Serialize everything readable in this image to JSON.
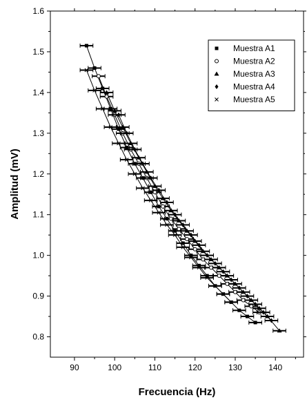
{
  "chart_data": {
    "type": "scatter",
    "title": "",
    "xlabel": "Frecuencia (Hz)",
    "ylabel": "Amplitud (mV)",
    "xlim": [
      84,
      147
    ],
    "ylim": [
      0.75,
      1.6
    ],
    "xticks": [
      90,
      100,
      110,
      120,
      130,
      140
    ],
    "yticks": [
      0.8,
      0.9,
      1.0,
      1.1,
      1.2,
      1.3,
      1.4,
      1.5,
      1.6
    ],
    "xtick_labels": [
      "90",
      "100",
      "110",
      "120",
      "130",
      "140"
    ],
    "ytick_labels": [
      "0.8",
      "0.9",
      "1.0",
      "1.1",
      "1.2",
      "1.3",
      "1.4",
      "1.5",
      "1.6"
    ],
    "grid": false,
    "legend_position": "top-right",
    "error_bars": "horizontal",
    "series": [
      {
        "name": "Muestra A1",
        "marker": "square",
        "x": [
          93,
          95,
          97,
          99,
          101,
          103,
          105,
          107,
          109,
          111,
          113,
          115,
          117,
          119,
          121,
          123,
          125,
          127,
          129,
          131,
          133,
          135
        ],
        "y": [
          1.515,
          1.46,
          1.41,
          1.36,
          1.31,
          1.265,
          1.225,
          1.19,
          1.155,
          1.12,
          1.09,
          1.06,
          1.03,
          1.0,
          0.975,
          0.95,
          0.925,
          0.905,
          0.885,
          0.865,
          0.85,
          0.835
        ]
      },
      {
        "name": "Muestra A2",
        "marker": "circle",
        "x": [
          96,
          98,
          100,
          102,
          104,
          106,
          108,
          110,
          112,
          114,
          116,
          118,
          120,
          122,
          124,
          126,
          128,
          130,
          132,
          134,
          136
        ],
        "y": [
          1.44,
          1.39,
          1.345,
          1.3,
          1.26,
          1.225,
          1.19,
          1.155,
          1.12,
          1.09,
          1.065,
          1.04,
          1.015,
          0.99,
          0.97,
          0.95,
          0.93,
          0.91,
          0.89,
          0.875,
          0.86
        ]
      },
      {
        "name": "Muestra A3",
        "marker": "triangle",
        "x": [
          98,
          100,
          102,
          104,
          106,
          108,
          110,
          112,
          114,
          116,
          118,
          120,
          122,
          124,
          126,
          128,
          130,
          132,
          134,
          136,
          138,
          141
        ],
        "y": [
          1.4,
          1.355,
          1.315,
          1.275,
          1.24,
          1.205,
          1.17,
          1.14,
          1.11,
          1.085,
          1.06,
          1.035,
          1.01,
          0.99,
          0.97,
          0.95,
          0.93,
          0.91,
          0.89,
          0.87,
          0.85,
          0.815
        ]
      },
      {
        "name": "Muestra A4",
        "marker": "diamond",
        "x": [
          101,
          103,
          105,
          107,
          109,
          111,
          113,
          115,
          117,
          119,
          121,
          123,
          125,
          127,
          129,
          131,
          133,
          135,
          137,
          139
        ],
        "y": [
          1.345,
          1.3,
          1.26,
          1.225,
          1.19,
          1.16,
          1.13,
          1.1,
          1.075,
          1.05,
          1.025,
          1.0,
          0.98,
          0.96,
          0.94,
          0.92,
          0.9,
          0.88,
          0.86,
          0.84
        ]
      },
      {
        "name": "Muestra A5",
        "marker": "x",
        "x": [
          93,
          95,
          97,
          99,
          101,
          103,
          105,
          107,
          109,
          111,
          113,
          115,
          117,
          119,
          121,
          123,
          125,
          127,
          129
        ],
        "y": [
          1.455,
          1.405,
          1.36,
          1.315,
          1.275,
          1.235,
          1.2,
          1.165,
          1.135,
          1.105,
          1.075,
          1.05,
          1.02,
          0.995,
          0.97,
          0.945,
          0.925,
          0.905,
          0.885
        ]
      }
    ]
  }
}
